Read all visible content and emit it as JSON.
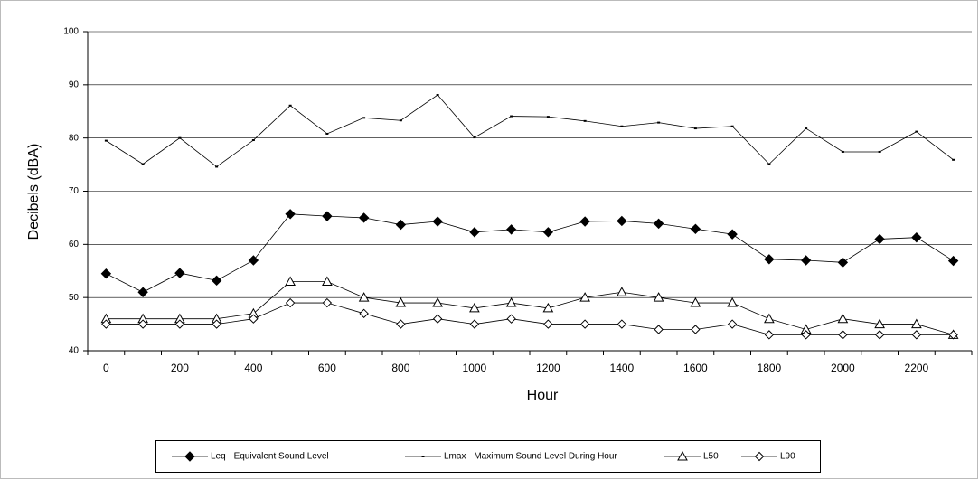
{
  "chart_data": {
    "type": "line",
    "x_label": "Hour",
    "y_label": "Decibels (dBA)",
    "categories": [
      0,
      null,
      200,
      null,
      400,
      null,
      600,
      null,
      800,
      null,
      1000,
      null,
      1200,
      null,
      1400,
      null,
      1600,
      null,
      1800,
      null,
      2000,
      null,
      2200,
      null
    ],
    "series": [
      {
        "name": "Leq - Equivalent Sound Level",
        "color": "#000000",
        "marker": "diamond-filled",
        "values": [
          54.5,
          51,
          54.6,
          53.2,
          57,
          65.7,
          65.3,
          65,
          63.7,
          64.3,
          62.3,
          62.8,
          62.3,
          64.3,
          64.4,
          63.9,
          62.9,
          61.9,
          57.2,
          57,
          56.6,
          61,
          61.3,
          56.9
        ]
      },
      {
        "name": "Lmax - Maximum Sound Level During Hour",
        "color": "#000000",
        "marker": "dash",
        "values": [
          79.5,
          75.1,
          80,
          74.6,
          79.6,
          86.1,
          80.8,
          83.8,
          83.3,
          88.1,
          80.1,
          84.1,
          84,
          83.2,
          82.2,
          82.9,
          81.8,
          82.2,
          75.1,
          81.8,
          77.4,
          77.4,
          81.2,
          75.9
        ]
      },
      {
        "name": "L50",
        "color": "#000000",
        "marker": "triangle-open",
        "values": [
          46,
          46,
          46,
          46,
          47,
          53,
          53,
          50,
          49,
          49,
          48,
          49,
          48,
          50,
          51,
          50,
          49,
          49,
          46,
          44,
          46,
          45,
          45,
          43
        ]
      },
      {
        "name": "L90",
        "color": "#000000",
        "marker": "diamond-open",
        "values": [
          45,
          45,
          45,
          45,
          46,
          49,
          49,
          47,
          45,
          46,
          45,
          46,
          45,
          45,
          45,
          44,
          44,
          45,
          43,
          43,
          43,
          43,
          43,
          43
        ]
      }
    ],
    "ylim": [
      40,
      100
    ],
    "yticks": [
      40,
      50,
      60,
      70,
      80,
      90,
      100
    ],
    "grid": true,
    "legend": "bottom"
  }
}
